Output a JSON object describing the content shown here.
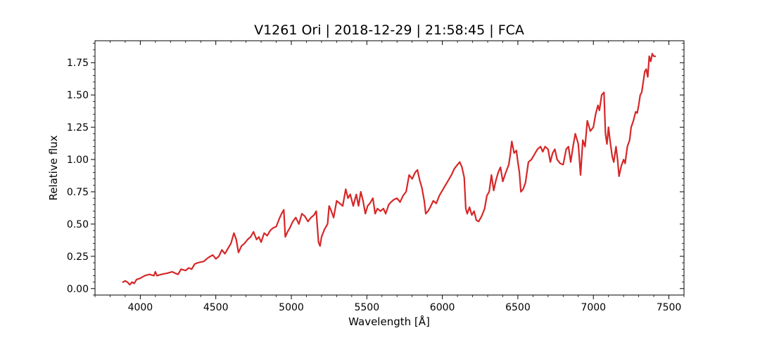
{
  "chart_data": {
    "type": "line",
    "title": "V1261 Ori | 2018-12-29 | 21:58:45 | FCA",
    "xlabel": "Wavelength [Å]",
    "ylabel": "Relative flux",
    "xlim": [
      3700,
      7600
    ],
    "ylim": [
      -0.05,
      1.92
    ],
    "xticks": [
      4000,
      4500,
      5000,
      5500,
      6000,
      6500,
      7000,
      7500
    ],
    "xtick_labels": [
      "4000",
      "4500",
      "5000",
      "5500",
      "6000",
      "6500",
      "7000",
      "7500"
    ],
    "yticks": [
      0.0,
      0.25,
      0.5,
      0.75,
      1.0,
      1.25,
      1.5,
      1.75
    ],
    "ytick_labels": [
      "0.00",
      "0.25",
      "0.50",
      "0.75",
      "1.00",
      "1.25",
      "1.50",
      "1.75"
    ],
    "x_minor_step": 100,
    "y_minor_step": 0.05,
    "grid": false,
    "series": [
      {
        "color": "#d62728",
        "points": [
          [
            3885,
            0.05
          ],
          [
            3900,
            0.06
          ],
          [
            3915,
            0.05
          ],
          [
            3930,
            0.03
          ],
          [
            3945,
            0.05
          ],
          [
            3960,
            0.04
          ],
          [
            3975,
            0.07
          ],
          [
            4000,
            0.08
          ],
          [
            4030,
            0.1
          ],
          [
            4060,
            0.11
          ],
          [
            4090,
            0.1
          ],
          [
            4100,
            0.13
          ],
          [
            4110,
            0.1
          ],
          [
            4140,
            0.11
          ],
          [
            4180,
            0.12
          ],
          [
            4210,
            0.13
          ],
          [
            4230,
            0.12
          ],
          [
            4250,
            0.11
          ],
          [
            4270,
            0.15
          ],
          [
            4300,
            0.14
          ],
          [
            4320,
            0.16
          ],
          [
            4340,
            0.15
          ],
          [
            4360,
            0.19
          ],
          [
            4380,
            0.2
          ],
          [
            4420,
            0.21
          ],
          [
            4450,
            0.24
          ],
          [
            4480,
            0.26
          ],
          [
            4500,
            0.23
          ],
          [
            4520,
            0.25
          ],
          [
            4540,
            0.3
          ],
          [
            4560,
            0.27
          ],
          [
            4580,
            0.31
          ],
          [
            4600,
            0.35
          ],
          [
            4620,
            0.43
          ],
          [
            4635,
            0.38
          ],
          [
            4650,
            0.28
          ],
          [
            4670,
            0.33
          ],
          [
            4690,
            0.35
          ],
          [
            4710,
            0.38
          ],
          [
            4730,
            0.4
          ],
          [
            4750,
            0.44
          ],
          [
            4770,
            0.38
          ],
          [
            4785,
            0.4
          ],
          [
            4800,
            0.36
          ],
          [
            4820,
            0.43
          ],
          [
            4840,
            0.41
          ],
          [
            4860,
            0.45
          ],
          [
            4880,
            0.47
          ],
          [
            4900,
            0.48
          ],
          [
            4920,
            0.54
          ],
          [
            4935,
            0.58
          ],
          [
            4950,
            0.61
          ],
          [
            4960,
            0.4
          ],
          [
            4975,
            0.44
          ],
          [
            4990,
            0.47
          ],
          [
            5010,
            0.52
          ],
          [
            5030,
            0.55
          ],
          [
            5050,
            0.5
          ],
          [
            5070,
            0.58
          ],
          [
            5090,
            0.56
          ],
          [
            5110,
            0.52
          ],
          [
            5130,
            0.55
          ],
          [
            5150,
            0.57
          ],
          [
            5165,
            0.6
          ],
          [
            5180,
            0.36
          ],
          [
            5190,
            0.33
          ],
          [
            5200,
            0.4
          ],
          [
            5220,
            0.46
          ],
          [
            5240,
            0.5
          ],
          [
            5250,
            0.64
          ],
          [
            5265,
            0.6
          ],
          [
            5280,
            0.55
          ],
          [
            5300,
            0.68
          ],
          [
            5320,
            0.66
          ],
          [
            5340,
            0.64
          ],
          [
            5360,
            0.77
          ],
          [
            5375,
            0.7
          ],
          [
            5390,
            0.73
          ],
          [
            5410,
            0.64
          ],
          [
            5430,
            0.73
          ],
          [
            5445,
            0.64
          ],
          [
            5460,
            0.75
          ],
          [
            5475,
            0.68
          ],
          [
            5490,
            0.58
          ],
          [
            5505,
            0.64
          ],
          [
            5520,
            0.66
          ],
          [
            5540,
            0.7
          ],
          [
            5555,
            0.58
          ],
          [
            5570,
            0.62
          ],
          [
            5590,
            0.6
          ],
          [
            5610,
            0.62
          ],
          [
            5625,
            0.58
          ],
          [
            5645,
            0.65
          ],
          [
            5660,
            0.67
          ],
          [
            5680,
            0.69
          ],
          [
            5700,
            0.7
          ],
          [
            5720,
            0.67
          ],
          [
            5740,
            0.72
          ],
          [
            5760,
            0.75
          ],
          [
            5780,
            0.88
          ],
          [
            5800,
            0.85
          ],
          [
            5820,
            0.9
          ],
          [
            5835,
            0.92
          ],
          [
            5850,
            0.84
          ],
          [
            5865,
            0.78
          ],
          [
            5880,
            0.68
          ],
          [
            5890,
            0.58
          ],
          [
            5905,
            0.6
          ],
          [
            5920,
            0.63
          ],
          [
            5940,
            0.68
          ],
          [
            5960,
            0.66
          ],
          [
            5980,
            0.72
          ],
          [
            6000,
            0.76
          ],
          [
            6020,
            0.8
          ],
          [
            6040,
            0.84
          ],
          [
            6060,
            0.88
          ],
          [
            6080,
            0.93
          ],
          [
            6100,
            0.96
          ],
          [
            6115,
            0.98
          ],
          [
            6130,
            0.94
          ],
          [
            6145,
            0.86
          ],
          [
            6155,
            0.62
          ],
          [
            6165,
            0.58
          ],
          [
            6180,
            0.63
          ],
          [
            6195,
            0.57
          ],
          [
            6210,
            0.6
          ],
          [
            6225,
            0.53
          ],
          [
            6240,
            0.52
          ],
          [
            6260,
            0.56
          ],
          [
            6280,
            0.62
          ],
          [
            6295,
            0.72
          ],
          [
            6310,
            0.75
          ],
          [
            6325,
            0.88
          ],
          [
            6340,
            0.76
          ],
          [
            6355,
            0.84
          ],
          [
            6370,
            0.9
          ],
          [
            6385,
            0.94
          ],
          [
            6400,
            0.83
          ],
          [
            6420,
            0.9
          ],
          [
            6440,
            0.96
          ],
          [
            6450,
            1.04
          ],
          [
            6460,
            1.14
          ],
          [
            6475,
            1.05
          ],
          [
            6490,
            1.07
          ],
          [
            6500,
            0.98
          ],
          [
            6510,
            0.9
          ],
          [
            6520,
            0.75
          ],
          [
            6535,
            0.77
          ],
          [
            6550,
            0.82
          ],
          [
            6570,
            0.98
          ],
          [
            6590,
            1.0
          ],
          [
            6610,
            1.04
          ],
          [
            6630,
            1.08
          ],
          [
            6650,
            1.1
          ],
          [
            6665,
            1.06
          ],
          [
            6680,
            1.1
          ],
          [
            6700,
            1.08
          ],
          [
            6715,
            0.98
          ],
          [
            6730,
            1.05
          ],
          [
            6745,
            1.08
          ],
          [
            6760,
            1.0
          ],
          [
            6780,
            0.97
          ],
          [
            6800,
            0.96
          ],
          [
            6820,
            1.08
          ],
          [
            6835,
            1.1
          ],
          [
            6850,
            0.98
          ],
          [
            6865,
            1.1
          ],
          [
            6880,
            1.2
          ],
          [
            6900,
            1.12
          ],
          [
            6915,
            0.88
          ],
          [
            6930,
            1.15
          ],
          [
            6945,
            1.1
          ],
          [
            6960,
            1.3
          ],
          [
            6980,
            1.22
          ],
          [
            7000,
            1.25
          ],
          [
            7015,
            1.35
          ],
          [
            7030,
            1.42
          ],
          [
            7040,
            1.38
          ],
          [
            7055,
            1.5
          ],
          [
            7070,
            1.52
          ],
          [
            7080,
            1.2
          ],
          [
            7090,
            1.12
          ],
          [
            7100,
            1.25
          ],
          [
            7110,
            1.15
          ],
          [
            7125,
            1.02
          ],
          [
            7135,
            0.98
          ],
          [
            7150,
            1.1
          ],
          [
            7160,
            1.0
          ],
          [
            7170,
            0.87
          ],
          [
            7185,
            0.95
          ],
          [
            7200,
            1.0
          ],
          [
            7210,
            0.97
          ],
          [
            7225,
            1.1
          ],
          [
            7240,
            1.15
          ],
          [
            7250,
            1.25
          ],
          [
            7265,
            1.3
          ],
          [
            7280,
            1.37
          ],
          [
            7290,
            1.36
          ],
          [
            7300,
            1.42
          ],
          [
            7310,
            1.5
          ],
          [
            7320,
            1.52
          ],
          [
            7330,
            1.6
          ],
          [
            7340,
            1.68
          ],
          [
            7350,
            1.7
          ],
          [
            7360,
            1.64
          ],
          [
            7370,
            1.8
          ],
          [
            7380,
            1.76
          ],
          [
            7390,
            1.82
          ],
          [
            7400,
            1.8
          ],
          [
            7410,
            1.8
          ]
        ]
      }
    ]
  }
}
